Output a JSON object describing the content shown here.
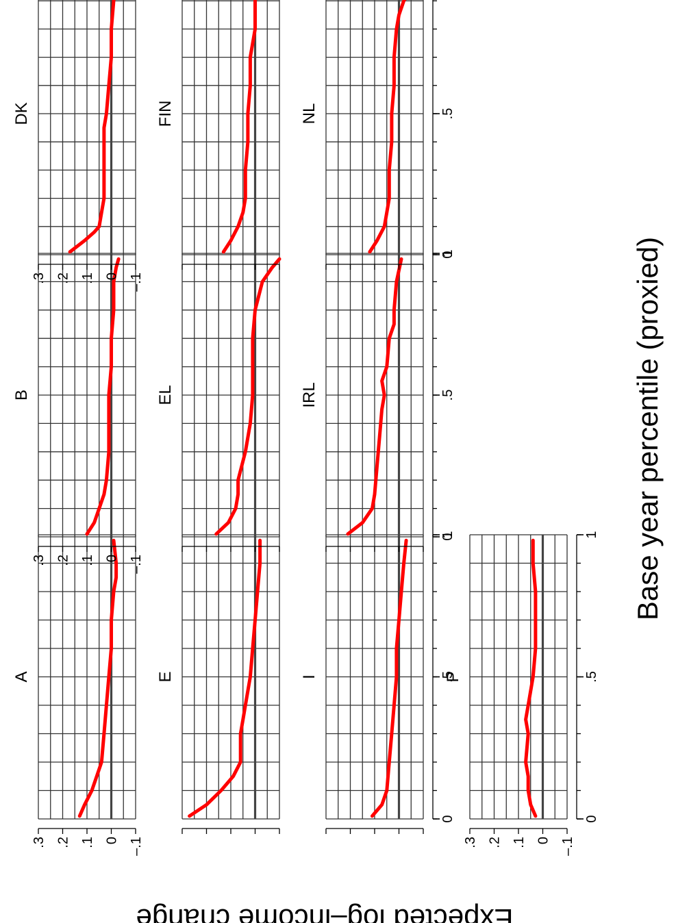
{
  "chart_data": {
    "type": "line",
    "layout": "small-multiples",
    "orientation": "rotated 90 degrees counter-clockwise",
    "xlabel": "Base year percentile (proxied)",
    "ylabel": "Expected log–income change",
    "xlim": [
      0,
      1
    ],
    "ylim": [
      -0.1,
      0.3
    ],
    "x_ticks": [
      "0",
      ".5",
      "1"
    ],
    "y_ticks": [
      ".3",
      ".2",
      ".1",
      "0",
      "–.1"
    ],
    "grid": true,
    "series_color": "#ff0000",
    "zero_line_color": "#444444",
    "panels": [
      {
        "name": "A",
        "x": [
          0.01,
          0.05,
          0.1,
          0.15,
          0.2,
          0.3,
          0.4,
          0.5,
          0.6,
          0.7,
          0.8,
          0.85,
          0.9,
          0.98
        ],
        "y": [
          0.13,
          0.11,
          0.08,
          0.06,
          0.04,
          0.03,
          0.02,
          0.01,
          0.0,
          0.0,
          -0.01,
          -0.02,
          -0.02,
          -0.01
        ]
      },
      {
        "name": "B",
        "x": [
          0.01,
          0.05,
          0.1,
          0.15,
          0.2,
          0.3,
          0.4,
          0.5,
          0.6,
          0.7,
          0.8,
          0.9,
          0.95,
          0.98
        ],
        "y": [
          0.1,
          0.07,
          0.05,
          0.03,
          0.02,
          0.01,
          0.01,
          0.01,
          0.0,
          0.0,
          -0.01,
          -0.01,
          -0.02,
          -0.03
        ]
      },
      {
        "name": "DK",
        "x": [
          0.01,
          0.03,
          0.05,
          0.08,
          0.1,
          0.15,
          0.2,
          0.3,
          0.4,
          0.45,
          0.5,
          0.6,
          0.7,
          0.8,
          0.9,
          0.98
        ],
        "y": [
          0.17,
          0.14,
          0.11,
          0.07,
          0.05,
          0.04,
          0.03,
          0.03,
          0.03,
          0.03,
          0.02,
          0.01,
          0.0,
          0.0,
          -0.01,
          -0.02
        ]
      },
      {
        "name": "E",
        "x": [
          0.01,
          0.05,
          0.1,
          0.15,
          0.2,
          0.25,
          0.3,
          0.35,
          0.4,
          0.5,
          0.6,
          0.7,
          0.8,
          0.9,
          0.98
        ],
        "y": [
          0.27,
          0.2,
          0.14,
          0.09,
          0.06,
          0.06,
          0.06,
          0.05,
          0.04,
          0.02,
          0.01,
          0.0,
          -0.01,
          -0.02,
          -0.02
        ]
      },
      {
        "name": "EL",
        "x": [
          0.01,
          0.05,
          0.1,
          0.15,
          0.2,
          0.3,
          0.4,
          0.5,
          0.6,
          0.7,
          0.8,
          0.9,
          0.95,
          0.98
        ],
        "y": [
          0.16,
          0.11,
          0.08,
          0.07,
          0.07,
          0.04,
          0.02,
          0.01,
          0.01,
          0.01,
          0.0,
          -0.03,
          -0.07,
          -0.1
        ]
      },
      {
        "name": "FIN",
        "x": [
          0.01,
          0.05,
          0.1,
          0.15,
          0.2,
          0.3,
          0.4,
          0.5,
          0.6,
          0.7,
          0.8,
          0.9,
          0.98
        ],
        "y": [
          0.13,
          0.1,
          0.07,
          0.05,
          0.04,
          0.04,
          0.03,
          0.03,
          0.02,
          0.02,
          0.0,
          0.0,
          -0.02
        ]
      },
      {
        "name": "I",
        "x": [
          0.01,
          0.05,
          0.1,
          0.2,
          0.3,
          0.4,
          0.5,
          0.6,
          0.7,
          0.8,
          0.9,
          0.98
        ],
        "y": [
          0.11,
          0.07,
          0.05,
          0.04,
          0.03,
          0.02,
          0.01,
          0.01,
          0.0,
          -0.01,
          -0.02,
          -0.03
        ]
      },
      {
        "name": "IRL",
        "x": [
          0.01,
          0.05,
          0.1,
          0.15,
          0.25,
          0.35,
          0.45,
          0.5,
          0.55,
          0.6,
          0.7,
          0.75,
          0.8,
          0.9,
          0.98
        ],
        "y": [
          0.21,
          0.15,
          0.11,
          0.1,
          0.09,
          0.08,
          0.07,
          0.06,
          0.07,
          0.05,
          0.04,
          0.02,
          0.02,
          0.01,
          -0.01
        ]
      },
      {
        "name": "NL",
        "x": [
          0.01,
          0.05,
          0.1,
          0.15,
          0.2,
          0.3,
          0.4,
          0.5,
          0.6,
          0.7,
          0.8,
          0.85,
          0.9,
          0.95,
          0.98
        ],
        "y": [
          0.12,
          0.09,
          0.06,
          0.05,
          0.04,
          0.04,
          0.03,
          0.03,
          0.02,
          0.02,
          0.01,
          0.0,
          -0.02,
          -0.06,
          -0.09
        ]
      },
      {
        "name": "P",
        "x": [
          0.01,
          0.05,
          0.1,
          0.15,
          0.2,
          0.3,
          0.35,
          0.4,
          0.5,
          0.6,
          0.7,
          0.8,
          0.9,
          0.98
        ],
        "y": [
          0.03,
          0.05,
          0.06,
          0.06,
          0.07,
          0.06,
          0.07,
          0.06,
          0.04,
          0.03,
          0.03,
          0.03,
          0.04,
          0.04
        ]
      }
    ]
  }
}
